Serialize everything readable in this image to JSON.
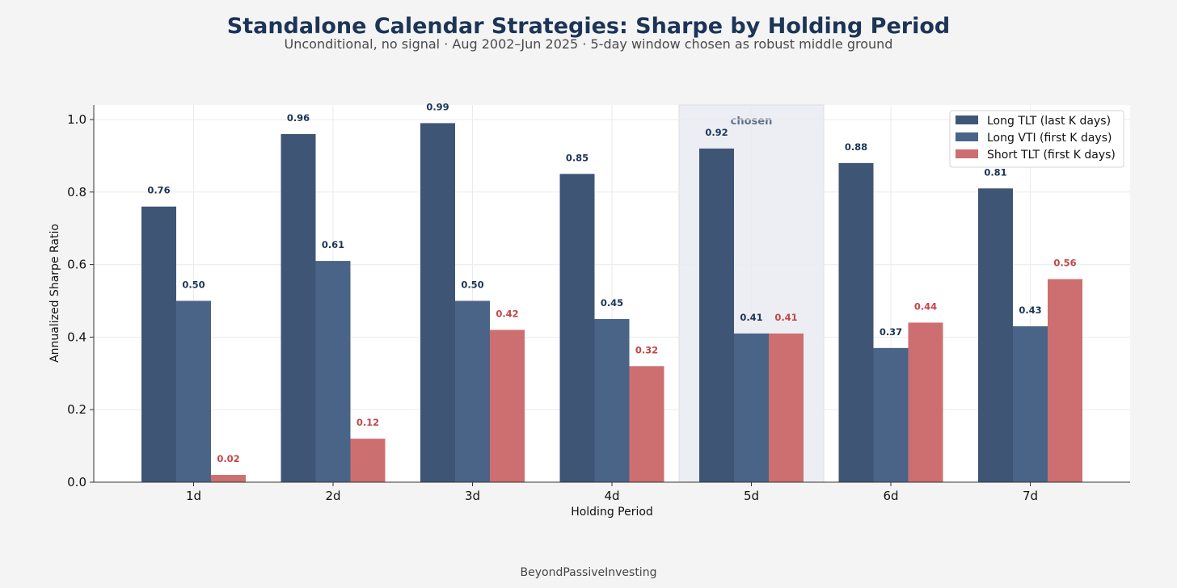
{
  "footer": "BeyondPassiveInvesting",
  "colors": {
    "background": "#f4f4f4",
    "plot_background": "#ffffff",
    "title": "#1c3557",
    "subtitle": "#4a4a4a",
    "highlight_fill": "#eceef3",
    "highlight_label": "#5d6f8c",
    "navy_label": "#1c3557",
    "red_label": "#c0474a"
  },
  "chart_data": {
    "type": "bar",
    "title": "Standalone Calendar Strategies: Sharpe by Holding Period",
    "subtitle": "Unconditional, no signal  ·  Aug 2002–Jun 2025  ·  5-day window chosen as robust middle ground",
    "xlabel": "Holding Period",
    "ylabel": "Annualized Sharpe Ratio",
    "categories": [
      "1d",
      "2d",
      "3d",
      "4d",
      "5d",
      "6d",
      "7d"
    ],
    "ylim": [
      0,
      1.04
    ],
    "yticks": [
      0.0,
      0.2,
      0.4,
      0.6,
      0.8,
      1.0
    ],
    "ytick_labels": [
      "0.0",
      "0.2",
      "0.4",
      "0.6",
      "0.8",
      "1.0"
    ],
    "grid": true,
    "legend_position": "top-right",
    "highlight": {
      "category": "5d",
      "label": "chosen"
    },
    "series": [
      {
        "name": "Long TLT (last K days)",
        "color": "#3e5576",
        "label_color": "#1c3557",
        "values": [
          0.76,
          0.96,
          0.99,
          0.85,
          0.92,
          0.88,
          0.81
        ],
        "labels": [
          "0.76",
          "0.96",
          "0.99",
          "0.85",
          "0.92",
          "0.88",
          "0.81"
        ]
      },
      {
        "name": "Long VTI (first K days)",
        "color": "#4a6488",
        "label_color": "#1c3557",
        "values": [
          0.5,
          0.61,
          0.5,
          0.45,
          0.41,
          0.37,
          0.43
        ],
        "labels": [
          "0.50",
          "0.61",
          "0.50",
          "0.45",
          "0.41",
          "0.37",
          "0.43"
        ]
      },
      {
        "name": "Short TLT (first K days)",
        "color": "#cd6f70",
        "label_color": "#c0474a",
        "values": [
          0.02,
          0.12,
          0.42,
          0.32,
          0.41,
          0.44,
          0.56
        ],
        "labels": [
          "0.02",
          "0.12",
          "0.42",
          "0.32",
          "0.41",
          "0.44",
          "0.56"
        ]
      }
    ]
  }
}
